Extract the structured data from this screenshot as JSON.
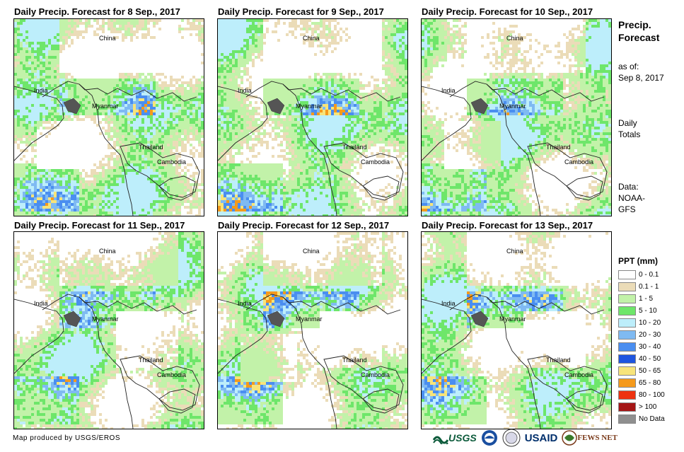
{
  "panels": [
    {
      "title": "Daily Precip. Forecast for 8 Sep., 2017"
    },
    {
      "title": "Daily Precip. Forecast for 9 Sep., 2017"
    },
    {
      "title": "Daily Precip. Forecast for 10 Sep., 2017"
    },
    {
      "title": "Daily Precip. Forecast for 11 Sep., 2017"
    },
    {
      "title": "Daily Precip. Forecast for 12 Sep., 2017"
    },
    {
      "title": "Daily Precip. Forecast for 13 Sep., 2017"
    }
  ],
  "map_labels": {
    "china": "China",
    "india": "India",
    "myanmar": "Myanmar",
    "thailand": "Thailand",
    "cambodia": "Cambodia"
  },
  "sidebar": {
    "title_line1": "Precip.",
    "title_line2": "Forecast",
    "asof_line1": "as of:",
    "asof_line2": "Sep 8, 2017",
    "daily_line1": "Daily",
    "daily_line2": "Totals",
    "data_line1": "Data:",
    "data_line2": "NOAA-",
    "data_line3": "GFS"
  },
  "legend": {
    "title": "PPT (mm)",
    "items": [
      {
        "label": "0 - 0.1",
        "color": "#ffffff"
      },
      {
        "label": "0.1 - 1",
        "color": "#ebdcb8"
      },
      {
        "label": "1 - 5",
        "color": "#c2f2a9"
      },
      {
        "label": "5 - 10",
        "color": "#6ee66a"
      },
      {
        "label": "10 - 20",
        "color": "#bdeefb"
      },
      {
        "label": "20 - 30",
        "color": "#7fbaf2"
      },
      {
        "label": "30 - 40",
        "color": "#4a8ef0"
      },
      {
        "label": "40 - 50",
        "color": "#1e55e0"
      },
      {
        "label": "50 - 65",
        "color": "#f7e47a"
      },
      {
        "label": "65 - 80",
        "color": "#f59a1c"
      },
      {
        "label": "80 - 100",
        "color": "#ee3210"
      },
      {
        "label": "> 100",
        "color": "#a51616"
      },
      {
        "label": "No Data",
        "color": "#8f8f8f"
      }
    ]
  },
  "credit": "Map produced by USGS/EROS",
  "logos": {
    "usgs": "USGS",
    "usaid": "USAID",
    "fewsnet": "FEWS NET"
  }
}
